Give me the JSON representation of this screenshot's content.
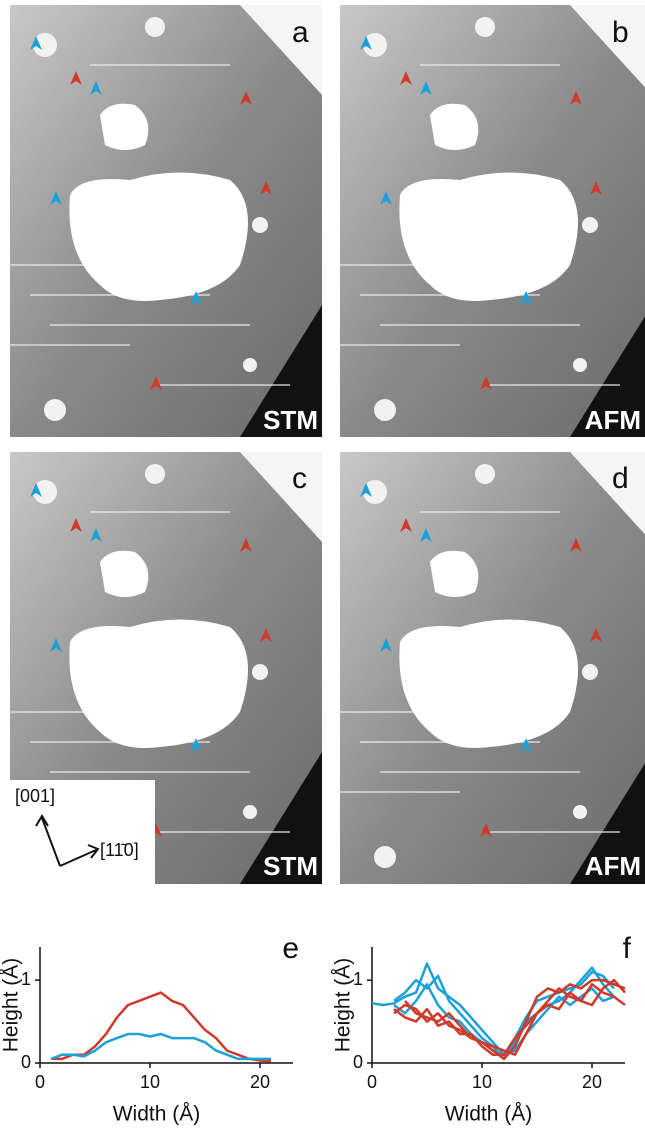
{
  "panels": [
    {
      "label": "a",
      "technique": "STM"
    },
    {
      "label": "b",
      "technique": "AFM"
    },
    {
      "label": "c",
      "technique": "STM"
    },
    {
      "label": "d",
      "technique": "AFM"
    }
  ],
  "directions": {
    "vertical": "[001]",
    "horizontal": "[11̄0]"
  },
  "chart_data": [
    {
      "type": "line",
      "label": "e",
      "x_label": "Width (Å)",
      "y_label": "Height (Å)",
      "xlim": [
        0,
        23
      ],
      "ylim": [
        0,
        1.4
      ],
      "xticks": [
        0,
        10,
        20
      ],
      "yticks": [
        0,
        1
      ],
      "x": [
        1,
        2,
        3,
        4,
        5,
        6,
        7,
        8,
        9,
        10,
        11,
        12,
        13,
        14,
        15,
        16,
        17,
        18,
        19,
        20,
        21
      ],
      "series": [
        {
          "color": "#d03a2a",
          "values": [
            0.05,
            0.05,
            0.1,
            0.1,
            0.2,
            0.35,
            0.55,
            0.7,
            0.75,
            0.8,
            0.85,
            0.75,
            0.7,
            0.55,
            0.4,
            0.3,
            0.15,
            0.1,
            0.05,
            0.03,
            0.02
          ]
        },
        {
          "color": "#1ba1d8",
          "values": [
            0.05,
            0.1,
            0.1,
            0.08,
            0.15,
            0.25,
            0.3,
            0.35,
            0.35,
            0.32,
            0.35,
            0.3,
            0.3,
            0.3,
            0.25,
            0.15,
            0.1,
            0.05,
            0.05,
            0.05,
            0.05
          ]
        }
      ]
    },
    {
      "type": "line",
      "label": "f",
      "x_label": "Width (Å)",
      "y_label": "Height (Å)",
      "xlim": [
        0,
        23
      ],
      "ylim": [
        0,
        1.4
      ],
      "xticks": [
        0,
        10,
        20
      ],
      "yticks": [
        0,
        1
      ],
      "x": [
        0,
        1,
        2,
        3,
        4,
        5,
        6,
        7,
        8,
        9,
        10,
        11,
        12,
        13,
        14,
        15,
        16,
        17,
        18,
        19,
        20,
        21,
        22,
        23
      ],
      "series": [
        {
          "color": "#1ba1d8",
          "values": [
            0.72,
            0.7,
            0.72,
            0.8,
            0.85,
            1.2,
            0.9,
            0.8,
            0.7,
            0.55,
            0.4,
            0.25,
            0.1,
            0.3,
            0.55,
            0.75,
            0.8,
            0.85,
            0.9,
            0.95,
            1.1,
            1.05,
            0.9,
            null
          ]
        },
        {
          "color": "#1ba1d8",
          "values": [
            null,
            null,
            0.75,
            0.85,
            1.0,
            0.9,
            1.05,
            0.75,
            0.6,
            0.45,
            0.3,
            0.2,
            0.05,
            0.25,
            0.5,
            0.6,
            0.7,
            0.75,
            0.85,
            1.0,
            1.15,
            0.95,
            0.8,
            null
          ]
        },
        {
          "color": "#1ba1d8",
          "values": [
            null,
            null,
            0.7,
            0.6,
            0.75,
            0.95,
            0.7,
            0.55,
            0.5,
            0.35,
            0.25,
            0.15,
            0.1,
            0.15,
            0.35,
            0.5,
            0.65,
            0.8,
            0.7,
            0.8,
            0.9,
            0.75,
            0.8,
            null
          ]
        },
        {
          "color": "#d03a2a",
          "values": [
            null,
            null,
            0.6,
            0.7,
            0.65,
            0.5,
            0.6,
            0.45,
            0.4,
            0.3,
            0.25,
            0.15,
            0.05,
            0.2,
            0.5,
            0.8,
            0.9,
            0.85,
            0.95,
            0.9,
            1.0,
            1.0,
            0.95,
            0.9
          ]
        },
        {
          "color": "#d03a2a",
          "values": [
            null,
            null,
            0.65,
            0.55,
            0.5,
            0.65,
            0.45,
            0.5,
            0.35,
            0.35,
            0.2,
            0.1,
            0.1,
            0.3,
            0.45,
            0.6,
            0.7,
            0.65,
            0.85,
            0.75,
            0.95,
            0.85,
            0.8,
            0.7
          ]
        },
        {
          "color": "#d03a2a",
          "values": [
            null,
            null,
            null,
            0.75,
            0.6,
            0.55,
            0.5,
            0.6,
            0.45,
            0.3,
            0.25,
            0.2,
            0.15,
            0.1,
            0.35,
            0.6,
            0.75,
            0.9,
            0.8,
            0.75,
            0.7,
            0.9,
            1.0,
            0.85
          ]
        }
      ]
    }
  ]
}
